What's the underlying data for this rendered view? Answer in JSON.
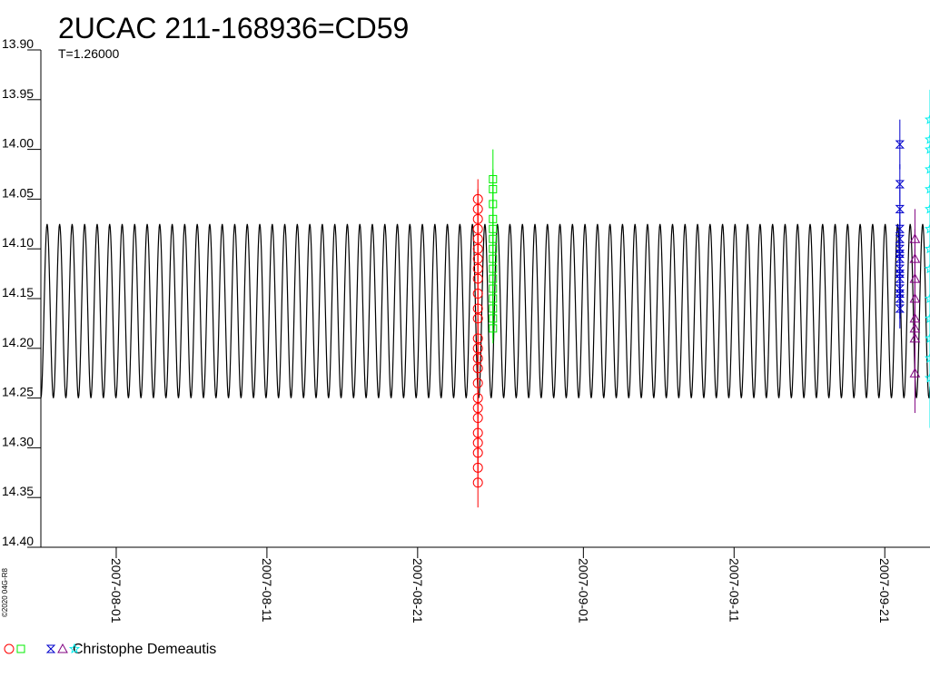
{
  "chart_data": {
    "type": "scatter",
    "title": "2UCAC 211-168936=CD59",
    "subtitle": "T=1.26000",
    "footer": "©2020 04G-R8",
    "legend_label": "Christophe Demeautis",
    "ylim": [
      13.9,
      14.4
    ],
    "y_inverted": true,
    "yticks": [
      {
        "value": 13.9,
        "label": "13.90"
      },
      {
        "value": 13.95,
        "label": "13.95"
      },
      {
        "value": 14.0,
        "label": "14.00"
      },
      {
        "value": 14.05,
        "label": "14.05"
      },
      {
        "value": 14.1,
        "label": "14.10"
      },
      {
        "value": 14.15,
        "label": "14.15"
      },
      {
        "value": 14.2,
        "label": "14.20"
      },
      {
        "value": 14.25,
        "label": "14.25"
      },
      {
        "value": 14.3,
        "label": "14.30"
      },
      {
        "value": 14.35,
        "label": "14.35"
      },
      {
        "value": 14.4,
        "label": "14.40"
      }
    ],
    "xlim": [
      "2007-07-27",
      "2007-09-24"
    ],
    "xticks": [
      "2007-08-01",
      "2007-08-11",
      "2007-08-21",
      "2007-09-01",
      "2007-09-11",
      "2007-09-21"
    ],
    "model": {
      "period_days": 0.83,
      "min": 14.075,
      "max": 14.25,
      "color": "#000000"
    },
    "series": [
      {
        "marker": "circle",
        "color": "#ff0000",
        "x": "2007-08-25",
        "values": [
          14.05,
          14.06,
          14.07,
          14.08,
          14.09,
          14.1,
          14.11,
          14.12,
          14.13,
          14.145,
          14.16,
          14.17,
          14.19,
          14.2,
          14.21,
          14.22,
          14.235,
          14.25,
          14.26,
          14.27,
          14.285,
          14.295,
          14.305,
          14.32,
          14.335
        ],
        "errors": [
          0.02,
          0.02,
          0.02,
          0.02,
          0.02,
          0.02,
          0.02,
          0.02,
          0.02,
          0.02,
          0.02,
          0.02,
          0.02,
          0.02,
          0.02,
          0.02,
          0.02,
          0.02,
          0.02,
          0.02,
          0.02,
          0.02,
          0.02,
          0.02,
          0.025
        ]
      },
      {
        "marker": "square",
        "color": "#00ee00",
        "x": "2007-08-26",
        "values": [
          14.03,
          14.04,
          14.055,
          14.07,
          14.08,
          14.09,
          14.1,
          14.11,
          14.12,
          14.13,
          14.14,
          14.15,
          14.16,
          14.17,
          14.18
        ],
        "errors": [
          0.03,
          0.02,
          0.02,
          0.02,
          0.02,
          0.02,
          0.02,
          0.02,
          0.02,
          0.02,
          0.02,
          0.02,
          0.02,
          0.02,
          0.015
        ]
      },
      {
        "marker": "bowtie",
        "color": "#0000cc",
        "x": "2007-09-22",
        "values": [
          13.995,
          14.035,
          14.06,
          14.08,
          14.09,
          14.1,
          14.105,
          14.11,
          14.12,
          14.125,
          14.13,
          14.14,
          14.145,
          14.15,
          14.16
        ],
        "errors": [
          0.025,
          0.02,
          0.02,
          0.02,
          0.02,
          0.02,
          0.02,
          0.02,
          0.02,
          0.02,
          0.02,
          0.02,
          0.02,
          0.02,
          0.02
        ]
      },
      {
        "marker": "triangle",
        "color": "#800080",
        "x": "2007-09-23",
        "values": [
          14.09,
          14.11,
          14.13,
          14.15,
          14.17,
          14.18,
          14.19,
          14.225
        ],
        "errors": [
          0.03,
          0.03,
          0.03,
          0.03,
          0.03,
          0.03,
          0.03,
          0.04
        ]
      },
      {
        "marker": "star",
        "color": "#00eeee",
        "x": "2007-09-24",
        "values": [
          13.97,
          13.99,
          14.0,
          14.02,
          14.04,
          14.06,
          14.08,
          14.1,
          14.12,
          14.15,
          14.17,
          14.19,
          14.21,
          14.23
        ],
        "errors": [
          0.03,
          0.03,
          0.03,
          0.03,
          0.03,
          0.03,
          0.03,
          0.03,
          0.03,
          0.03,
          0.03,
          0.03,
          0.03,
          0.05
        ]
      }
    ]
  }
}
